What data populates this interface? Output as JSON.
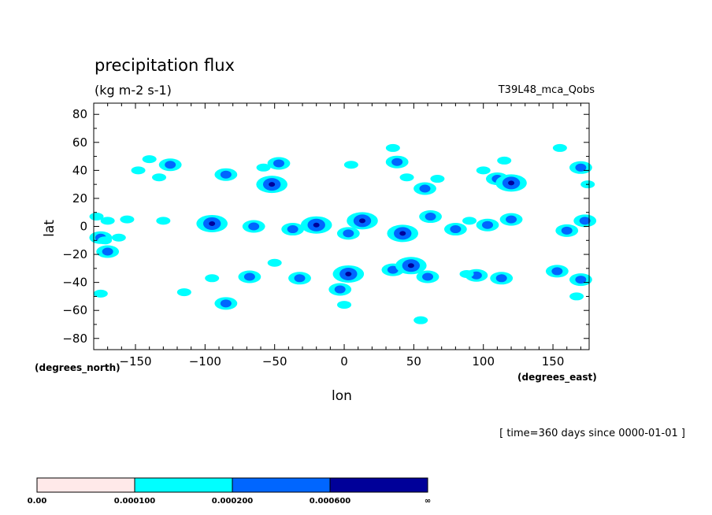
{
  "chart_data": {
    "type": "heatmap",
    "title": "precipitation flux",
    "units": "(kg m-2 s-1)",
    "run_label": "T39L48_mca_Qobs",
    "xlabel": "lon",
    "ylabel": "lat",
    "x_unit_label": "(degrees_east)",
    "y_unit_label": "(degrees_north)",
    "time_label": "[ time=360 days since 0000-01-01 ]",
    "xlim": [
      -180,
      176
    ],
    "ylim": [
      -88,
      88
    ],
    "x_ticks": [
      -150,
      -100,
      -50,
      0,
      50,
      100,
      150
    ],
    "y_ticks": [
      80,
      60,
      40,
      20,
      0,
      -20,
      -40,
      -60,
      -80
    ],
    "colorbar": {
      "levels": [
        "0.00",
        "0.000100",
        "0.000200",
        "0.000600",
        "∞"
      ],
      "colors": [
        "#ffe9e9",
        "#00ffff",
        "#0066ff",
        "#000099"
      ]
    },
    "cells": [
      {
        "lon": -175,
        "lat": -8,
        "level": 2
      },
      {
        "lon": -170,
        "lat": -18,
        "level": 2
      },
      {
        "lon": -172,
        "lat": -10,
        "level": 1
      },
      {
        "lon": -178,
        "lat": 7,
        "level": 1
      },
      {
        "lon": -170,
        "lat": 4,
        "level": 1
      },
      {
        "lon": -162,
        "lat": -8,
        "level": 1
      },
      {
        "lon": -156,
        "lat": 5,
        "level": 1
      },
      {
        "lon": -140,
        "lat": 48,
        "level": 1
      },
      {
        "lon": -125,
        "lat": 44,
        "level": 2
      },
      {
        "lon": -133,
        "lat": 35,
        "level": 1
      },
      {
        "lon": -148,
        "lat": 40,
        "level": 1
      },
      {
        "lon": -130,
        "lat": 4,
        "level": 1
      },
      {
        "lon": -95,
        "lat": 2,
        "level": 3
      },
      {
        "lon": -85,
        "lat": 37,
        "level": 2
      },
      {
        "lon": -65,
        "lat": 0,
        "level": 2
      },
      {
        "lon": -52,
        "lat": 30,
        "level": 3
      },
      {
        "lon": -47,
        "lat": 45,
        "level": 2
      },
      {
        "lon": -58,
        "lat": 42,
        "level": 1
      },
      {
        "lon": -37,
        "lat": -2,
        "level": 2
      },
      {
        "lon": -20,
        "lat": 1,
        "level": 3
      },
      {
        "lon": 3,
        "lat": -5,
        "level": 2
      },
      {
        "lon": 13,
        "lat": 4,
        "level": 3
      },
      {
        "lon": 5,
        "lat": 44,
        "level": 1
      },
      {
        "lon": 38,
        "lat": 46,
        "level": 2
      },
      {
        "lon": 35,
        "lat": 56,
        "level": 1
      },
      {
        "lon": 42,
        "lat": -5,
        "level": 3
      },
      {
        "lon": 58,
        "lat": 27,
        "level": 2
      },
      {
        "lon": 62,
        "lat": 7,
        "level": 2
      },
      {
        "lon": 67,
        "lat": 34,
        "level": 1
      },
      {
        "lon": 80,
        "lat": -2,
        "level": 2
      },
      {
        "lon": 90,
        "lat": 4,
        "level": 1
      },
      {
        "lon": 103,
        "lat": 1,
        "level": 2
      },
      {
        "lon": 110,
        "lat": 34,
        "level": 2
      },
      {
        "lon": 120,
        "lat": 31,
        "level": 3
      },
      {
        "lon": 120,
        "lat": 5,
        "level": 2
      },
      {
        "lon": 100,
        "lat": 40,
        "level": 1
      },
      {
        "lon": 160,
        "lat": -3,
        "level": 2
      },
      {
        "lon": 170,
        "lat": 42,
        "level": 2
      },
      {
        "lon": 175,
        "lat": 30,
        "level": 1
      },
      {
        "lon": 173,
        "lat": 4,
        "level": 2
      },
      {
        "lon": 155,
        "lat": 56,
        "level": 1
      },
      {
        "lon": -85,
        "lat": -55,
        "level": 2
      },
      {
        "lon": -95,
        "lat": -37,
        "level": 1
      },
      {
        "lon": -68,
        "lat": -36,
        "level": 2
      },
      {
        "lon": -32,
        "lat": -37,
        "level": 2
      },
      {
        "lon": -3,
        "lat": -45,
        "level": 2
      },
      {
        "lon": 3,
        "lat": -34,
        "level": 3
      },
      {
        "lon": 0,
        "lat": -56,
        "level": 1
      },
      {
        "lon": 35,
        "lat": -31,
        "level": 2
      },
      {
        "lon": 48,
        "lat": -28,
        "level": 3
      },
      {
        "lon": 60,
        "lat": -36,
        "level": 2
      },
      {
        "lon": 95,
        "lat": -35,
        "level": 2
      },
      {
        "lon": 113,
        "lat": -37,
        "level": 2
      },
      {
        "lon": 55,
        "lat": -67,
        "level": 1
      },
      {
        "lon": 153,
        "lat": -32,
        "level": 2
      },
      {
        "lon": 170,
        "lat": -38,
        "level": 2
      },
      {
        "lon": 167,
        "lat": -50,
        "level": 1
      },
      {
        "lon": -50,
        "lat": -26,
        "level": 1
      },
      {
        "lon": -115,
        "lat": -47,
        "level": 1
      },
      {
        "lon": -175,
        "lat": -48,
        "level": 1
      },
      {
        "lon": 45,
        "lat": 35,
        "level": 1
      },
      {
        "lon": 115,
        "lat": 47,
        "level": 1
      },
      {
        "lon": 88,
        "lat": -34,
        "level": 1
      }
    ]
  }
}
